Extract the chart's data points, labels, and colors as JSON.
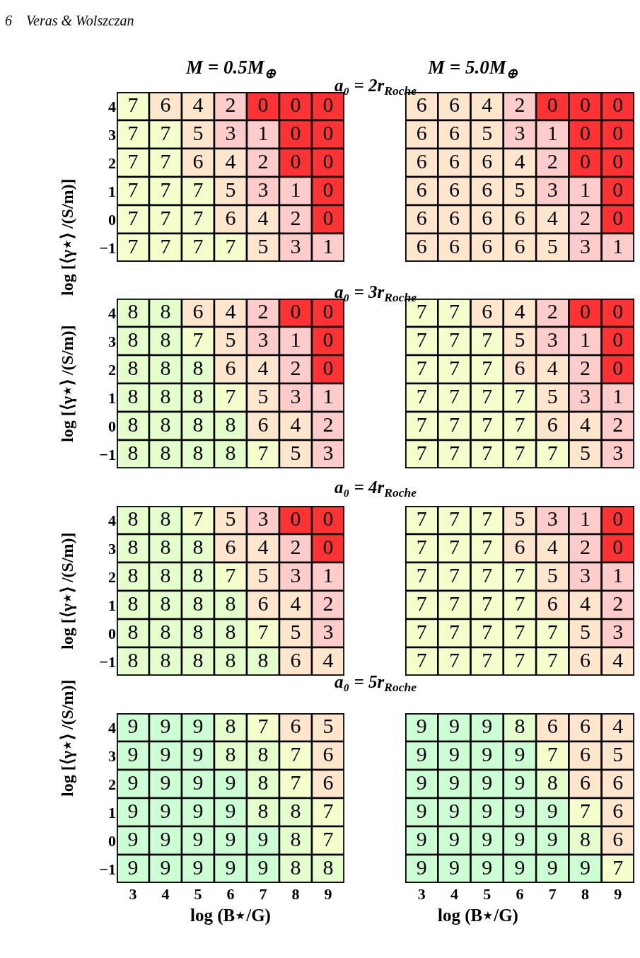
{
  "chart_data": [
    {
      "type": "heatmap",
      "title": "M = 0.5M$_{⊕}$",
      "subtitle": "a₀ = 2r$_{Roche}$",
      "ylabel": "log [⟨γ⋆⟩ /(S/m)]",
      "annotations": [
        "6    Veras & Wolszczan"
      ],
      "tick_labels": "y",
      "data_labels": true,
      "categories": [
        "3",
        "4",
        "5",
        "6",
        "7",
        "8",
        "9"
      ],
      "y_categories": [
        "4",
        "3",
        "2",
        "1",
        "0",
        "−1"
      ],
      "colors": [
        "#ff3333",
        "#ffcccc",
        "#ffcccc",
        "#ffcccc",
        "#ffe6cc",
        "#ffe6cc",
        "#ffe6cc",
        "#f5ffcc",
        "#e4ffcc",
        "#ccffd4"
      ],
      "cells": [
        [
          7,
          6,
          4,
          2,
          0,
          0,
          0
        ],
        [
          7,
          7,
          5,
          3,
          1,
          0,
          0
        ],
        [
          7,
          7,
          6,
          4,
          2,
          0,
          0
        ],
        [
          7,
          7,
          7,
          5,
          3,
          1,
          0
        ],
        [
          7,
          7,
          7,
          6,
          4,
          2,
          0
        ],
        [
          7,
          7,
          7,
          7,
          5,
          3,
          1
        ]
      ]
    },
    {
      "type": "heatmap",
      "title": "M = 5.0M$_{⊕}$",
      "tick_labels": false,
      "data_labels": true,
      "categories": [
        "3",
        "4",
        "5",
        "6",
        "7",
        "8",
        "9"
      ],
      "y_categories": [
        "4",
        "3",
        "2",
        "1",
        "0",
        "−1"
      ],
      "colors": [
        "#ff3333",
        "#ffcccc",
        "#ffcccc",
        "#ffcccc",
        "#ffe6cc",
        "#ffe6cc",
        "#ffe6cc",
        "#f5ffcc",
        "#e4ffcc",
        "#ccffd4"
      ],
      "cells": [
        [
          6,
          6,
          4,
          2,
          0,
          0,
          0
        ],
        [
          6,
          6,
          5,
          3,
          1,
          0,
          0
        ],
        [
          6,
          6,
          6,
          4,
          2,
          0,
          0
        ],
        [
          6,
          6,
          6,
          5,
          3,
          1,
          0
        ],
        [
          6,
          6,
          6,
          6,
          4,
          2,
          0
        ],
        [
          6,
          6,
          6,
          6,
          5,
          3,
          1
        ]
      ]
    },
    {
      "type": "heatmap",
      "subtitle": "a₀ = 3r$_{Roche}$",
      "ylabel": "log [⟨γ⋆⟩ /(S/m)]",
      "tick_labels": "y",
      "data_labels": true,
      "categories": [
        "3",
        "4",
        "5",
        "6",
        "7",
        "8",
        "9"
      ],
      "y_categories": [
        "4",
        "3",
        "2",
        "1",
        "0",
        "−1"
      ],
      "colors": [
        "#ff3333",
        "#ffcccc",
        "#ffcccc",
        "#ffcccc",
        "#ffe6cc",
        "#ffe6cc",
        "#ffe6cc",
        "#f5ffcc",
        "#e4ffcc",
        "#ccffd4"
      ],
      "cells": [
        [
          8,
          8,
          6,
          4,
          2,
          0,
          0
        ],
        [
          8,
          8,
          7,
          5,
          3,
          1,
          0
        ],
        [
          8,
          8,
          8,
          6,
          4,
          2,
          0
        ],
        [
          8,
          8,
          8,
          7,
          5,
          3,
          1
        ],
        [
          8,
          8,
          8,
          8,
          6,
          4,
          2
        ],
        [
          8,
          8,
          8,
          8,
          7,
          5,
          3
        ]
      ]
    },
    {
      "type": "heatmap",
      "tick_labels": false,
      "data_labels": true,
      "categories": [
        "3",
        "4",
        "5",
        "6",
        "7",
        "8",
        "9"
      ],
      "y_categories": [
        "4",
        "3",
        "2",
        "1",
        "0",
        "−1"
      ],
      "colors": [
        "#ff3333",
        "#ffcccc",
        "#ffcccc",
        "#ffcccc",
        "#ffe6cc",
        "#ffe6cc",
        "#ffe6cc",
        "#f5ffcc",
        "#e4ffcc",
        "#ccffd4"
      ],
      "cells": [
        [
          7,
          7,
          6,
          4,
          2,
          0,
          0
        ],
        [
          7,
          7,
          7,
          5,
          3,
          1,
          0
        ],
        [
          7,
          7,
          7,
          6,
          4,
          2,
          0
        ],
        [
          7,
          7,
          7,
          7,
          5,
          3,
          1
        ],
        [
          7,
          7,
          7,
          7,
          6,
          4,
          2
        ],
        [
          7,
          7,
          7,
          7,
          7,
          5,
          3
        ]
      ]
    },
    {
      "type": "heatmap",
      "subtitle": "a₀ = 4r$_{Roche}$",
      "ylabel": "log [⟨γ⋆⟩ /(S/m)]",
      "tick_labels": "y",
      "data_labels": true,
      "categories": [
        "3",
        "4",
        "5",
        "6",
        "7",
        "8",
        "9"
      ],
      "y_categories": [
        "4",
        "3",
        "2",
        "1",
        "0",
        "−1"
      ],
      "colors": [
        "#ff3333",
        "#ffcccc",
        "#ffcccc",
        "#ffcccc",
        "#ffe6cc",
        "#ffe6cc",
        "#ffe6cc",
        "#f5ffcc",
        "#e4ffcc",
        "#ccffd4"
      ],
      "cells": [
        [
          8,
          8,
          7,
          5,
          3,
          0,
          0
        ],
        [
          8,
          8,
          8,
          6,
          4,
          2,
          0
        ],
        [
          8,
          8,
          8,
          7,
          5,
          3,
          1
        ],
        [
          8,
          8,
          8,
          8,
          6,
          4,
          2
        ],
        [
          8,
          8,
          8,
          8,
          7,
          5,
          3
        ],
        [
          8,
          8,
          8,
          8,
          8,
          6,
          4
        ]
      ]
    },
    {
      "type": "heatmap",
      "tick_labels": false,
      "data_labels": true,
      "categories": [
        "3",
        "4",
        "5",
        "6",
        "7",
        "8",
        "9"
      ],
      "y_categories": [
        "4",
        "3",
        "2",
        "1",
        "0",
        "−1"
      ],
      "colors": [
        "#ff3333",
        "#ffcccc",
        "#ffcccc",
        "#ffcccc",
        "#ffe6cc",
        "#ffe6cc",
        "#ffe6cc",
        "#f5ffcc",
        "#e4ffcc",
        "#ccffd4"
      ],
      "cells": [
        [
          7,
          7,
          7,
          5,
          3,
          1,
          0
        ],
        [
          7,
          7,
          7,
          6,
          4,
          2,
          0
        ],
        [
          7,
          7,
          7,
          7,
          5,
          3,
          1
        ],
        [
          7,
          7,
          7,
          7,
          6,
          4,
          2
        ],
        [
          7,
          7,
          7,
          7,
          7,
          5,
          3
        ],
        [
          7,
          7,
          7,
          7,
          7,
          6,
          4
        ]
      ]
    },
    {
      "type": "heatmap",
      "subtitle": "a₀ = 5r$_{Roche}$",
      "xlabel": "log (B⋆/G)",
      "ylabel": "log [⟨γ⋆⟩ /(S/m)]",
      "data_labels": true,
      "categories": [
        "3",
        "4",
        "5",
        "6",
        "7",
        "8",
        "9"
      ],
      "y_categories": [
        "4",
        "3",
        "2",
        "1",
        "0",
        "−1"
      ],
      "colors": [
        "#ff3333",
        "#ffcccc",
        "#ffcccc",
        "#ffcccc",
        "#ffe6cc",
        "#ffe6cc",
        "#ffe6cc",
        "#f5ffcc",
        "#e4ffcc",
        "#ccffd4"
      ],
      "cells": [
        [
          9,
          9,
          9,
          8,
          7,
          6,
          5
        ],
        [
          9,
          9,
          9,
          8,
          8,
          7,
          6
        ],
        [
          9,
          9,
          9,
          9,
          8,
          7,
          6
        ],
        [
          9,
          9,
          9,
          9,
          8,
          8,
          7
        ],
        [
          9,
          9,
          9,
          9,
          9,
          8,
          7
        ],
        [
          9,
          9,
          9,
          9,
          9,
          8,
          8
        ]
      ]
    },
    {
      "type": "heatmap",
      "xlabel": "log (B⋆/G)",
      "tick_labels": "x",
      "data_labels": true,
      "categories": [
        "3",
        "4",
        "5",
        "6",
        "7",
        "8",
        "9"
      ],
      "y_categories": [
        "4",
        "3",
        "2",
        "1",
        "0",
        "−1"
      ],
      "colors": [
        "#ff3333",
        "#ffcccc",
        "#ffcccc",
        "#ffcccc",
        "#ffe6cc",
        "#ffe6cc",
        "#ffe6cc",
        "#f5ffcc",
        "#e4ffcc",
        "#ccffd4"
      ],
      "cells": [
        [
          9,
          9,
          9,
          8,
          6,
          6,
          4
        ],
        [
          9,
          9,
          9,
          9,
          7,
          6,
          5
        ],
        [
          9,
          9,
          9,
          9,
          8,
          6,
          6
        ],
        [
          9,
          9,
          9,
          9,
          9,
          7,
          6
        ],
        [
          9,
          9,
          9,
          9,
          9,
          8,
          6
        ],
        [
          9,
          9,
          9,
          9,
          9,
          9,
          7
        ]
      ]
    }
  ]
}
